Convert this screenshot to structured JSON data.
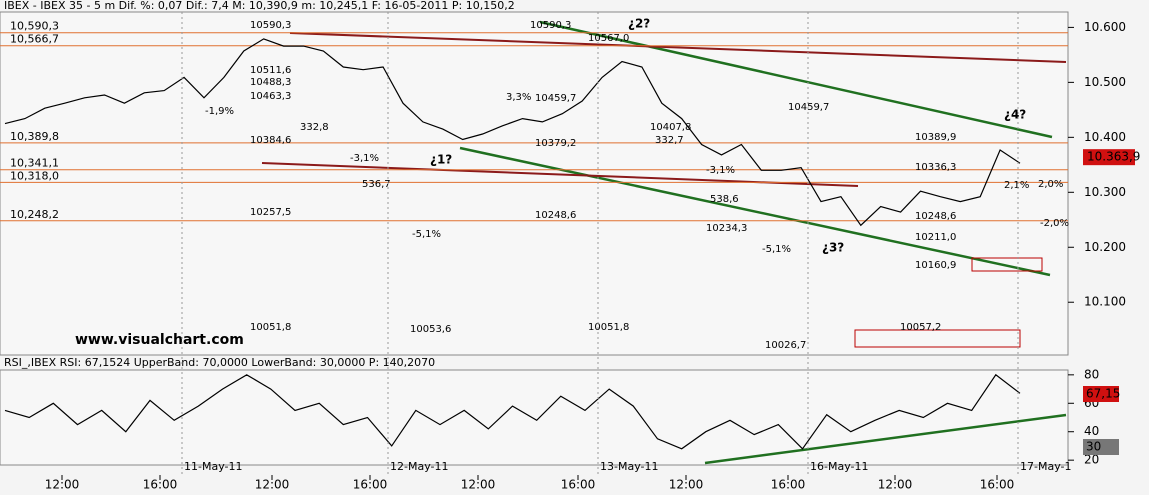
{
  "chart_data": [
    {
      "type": "line",
      "title": "IBEX - IBEX 35 -  5 m Dif. %: 0,07 Dif.: 7,4 M: 10,390,9 m: 10,245,1 F: 16-05-2011 P: 10,150,2",
      "color": "#000000",
      "values": [
        10425,
        10434,
        10453,
        10462,
        10472,
        10477,
        10462,
        10481,
        10485,
        10509,
        10472,
        10509,
        10557,
        10579,
        10566,
        10566,
        10557,
        10528,
        10523,
        10528,
        10462,
        10428,
        10415,
        10396,
        10406,
        10421,
        10434,
        10428,
        10443,
        10466,
        10509,
        10538,
        10528,
        10462,
        10434,
        10387,
        10368,
        10387,
        10340,
        10340,
        10345,
        10283,
        10292,
        10240,
        10274,
        10264,
        10302,
        10292,
        10283,
        10292,
        10377,
        10353
      ],
      "ylim": [
        10004,
        10628
      ],
      "yticks": [
        {
          "value": 10100,
          "label": "10.100"
        },
        {
          "value": 10200,
          "label": "10.200"
        },
        {
          "value": 10300,
          "label": "10.300"
        },
        {
          "value": 10400,
          "label": "10.400"
        },
        {
          "value": 10500,
          "label": "10.500"
        },
        {
          "value": 10600,
          "label": "10.600"
        }
      ],
      "last_price": {
        "value": 10363.9,
        "label": "10.363,9"
      },
      "levels": [
        {
          "value": 10590.3,
          "label": "10,590,3"
        },
        {
          "value": 10566.7,
          "label": "10,566,7"
        },
        {
          "value": 10389.8,
          "label": "10,389,8"
        },
        {
          "value": 10341.1,
          "label": "10,341,1"
        },
        {
          "value": 10318.0,
          "label": "10,318,0"
        },
        {
          "value": 10248.2,
          "label": "10,248,2"
        }
      ],
      "annotations": [
        "10590,3",
        "10567,0",
        "10590,3",
        "¿2?",
        "¿1?",
        "¿3?",
        "¿4?",
        "10511,6",
        "10488,3",
        "10463,3",
        "10384,6",
        "10257,5",
        "10051,8",
        "10051,8",
        "10459,7",
        "10379,2",
        "10248,6",
        "10407,8",
        "332,7",
        "10389,9",
        "10336,3",
        "10248,6",
        "10211,0",
        "10160,9",
        "10057,2",
        "10026,7",
        "10053,6",
        "10459,7",
        "-5,1%",
        "-5,1%",
        "536,7",
        "538,6",
        "-3,1%",
        "3,3%",
        "-3,1%",
        "332,8",
        "-1,9%",
        "2,1%",
        "2,0%",
        "-2,0%",
        "10234,3",
        "www.visualchart.com"
      ]
    },
    {
      "type": "line",
      "title": "RSI_,IBEX RSI: 67,1524 UpperBand: 70,0000 LowerBand: 30,0000 P: 140,2070",
      "color": "#000000",
      "values": [
        55,
        50,
        60,
        45,
        55,
        40,
        62,
        48,
        58,
        70,
        80,
        70,
        55,
        60,
        45,
        50,
        30,
        55,
        45,
        55,
        42,
        58,
        48,
        65,
        55,
        70,
        58,
        35,
        28,
        40,
        48,
        38,
        45,
        28,
        52,
        40,
        48,
        55,
        50,
        60,
        55,
        80,
        67
      ],
      "ylim": [
        16.6,
        83.4
      ],
      "yticks": [
        20,
        40,
        60,
        80
      ],
      "tags": [
        "67,15",
        "30"
      ],
      "time_labels": [
        "12:00",
        "16:00",
        "12:00",
        "16:00",
        "12:00",
        "16:00",
        "12:00",
        "16:00",
        "12:00",
        "16:00"
      ],
      "date_labels": [
        "11-May-11",
        "12-May-11",
        "13-May-11",
        "16-May-11",
        "17-May-1"
      ]
    }
  ]
}
